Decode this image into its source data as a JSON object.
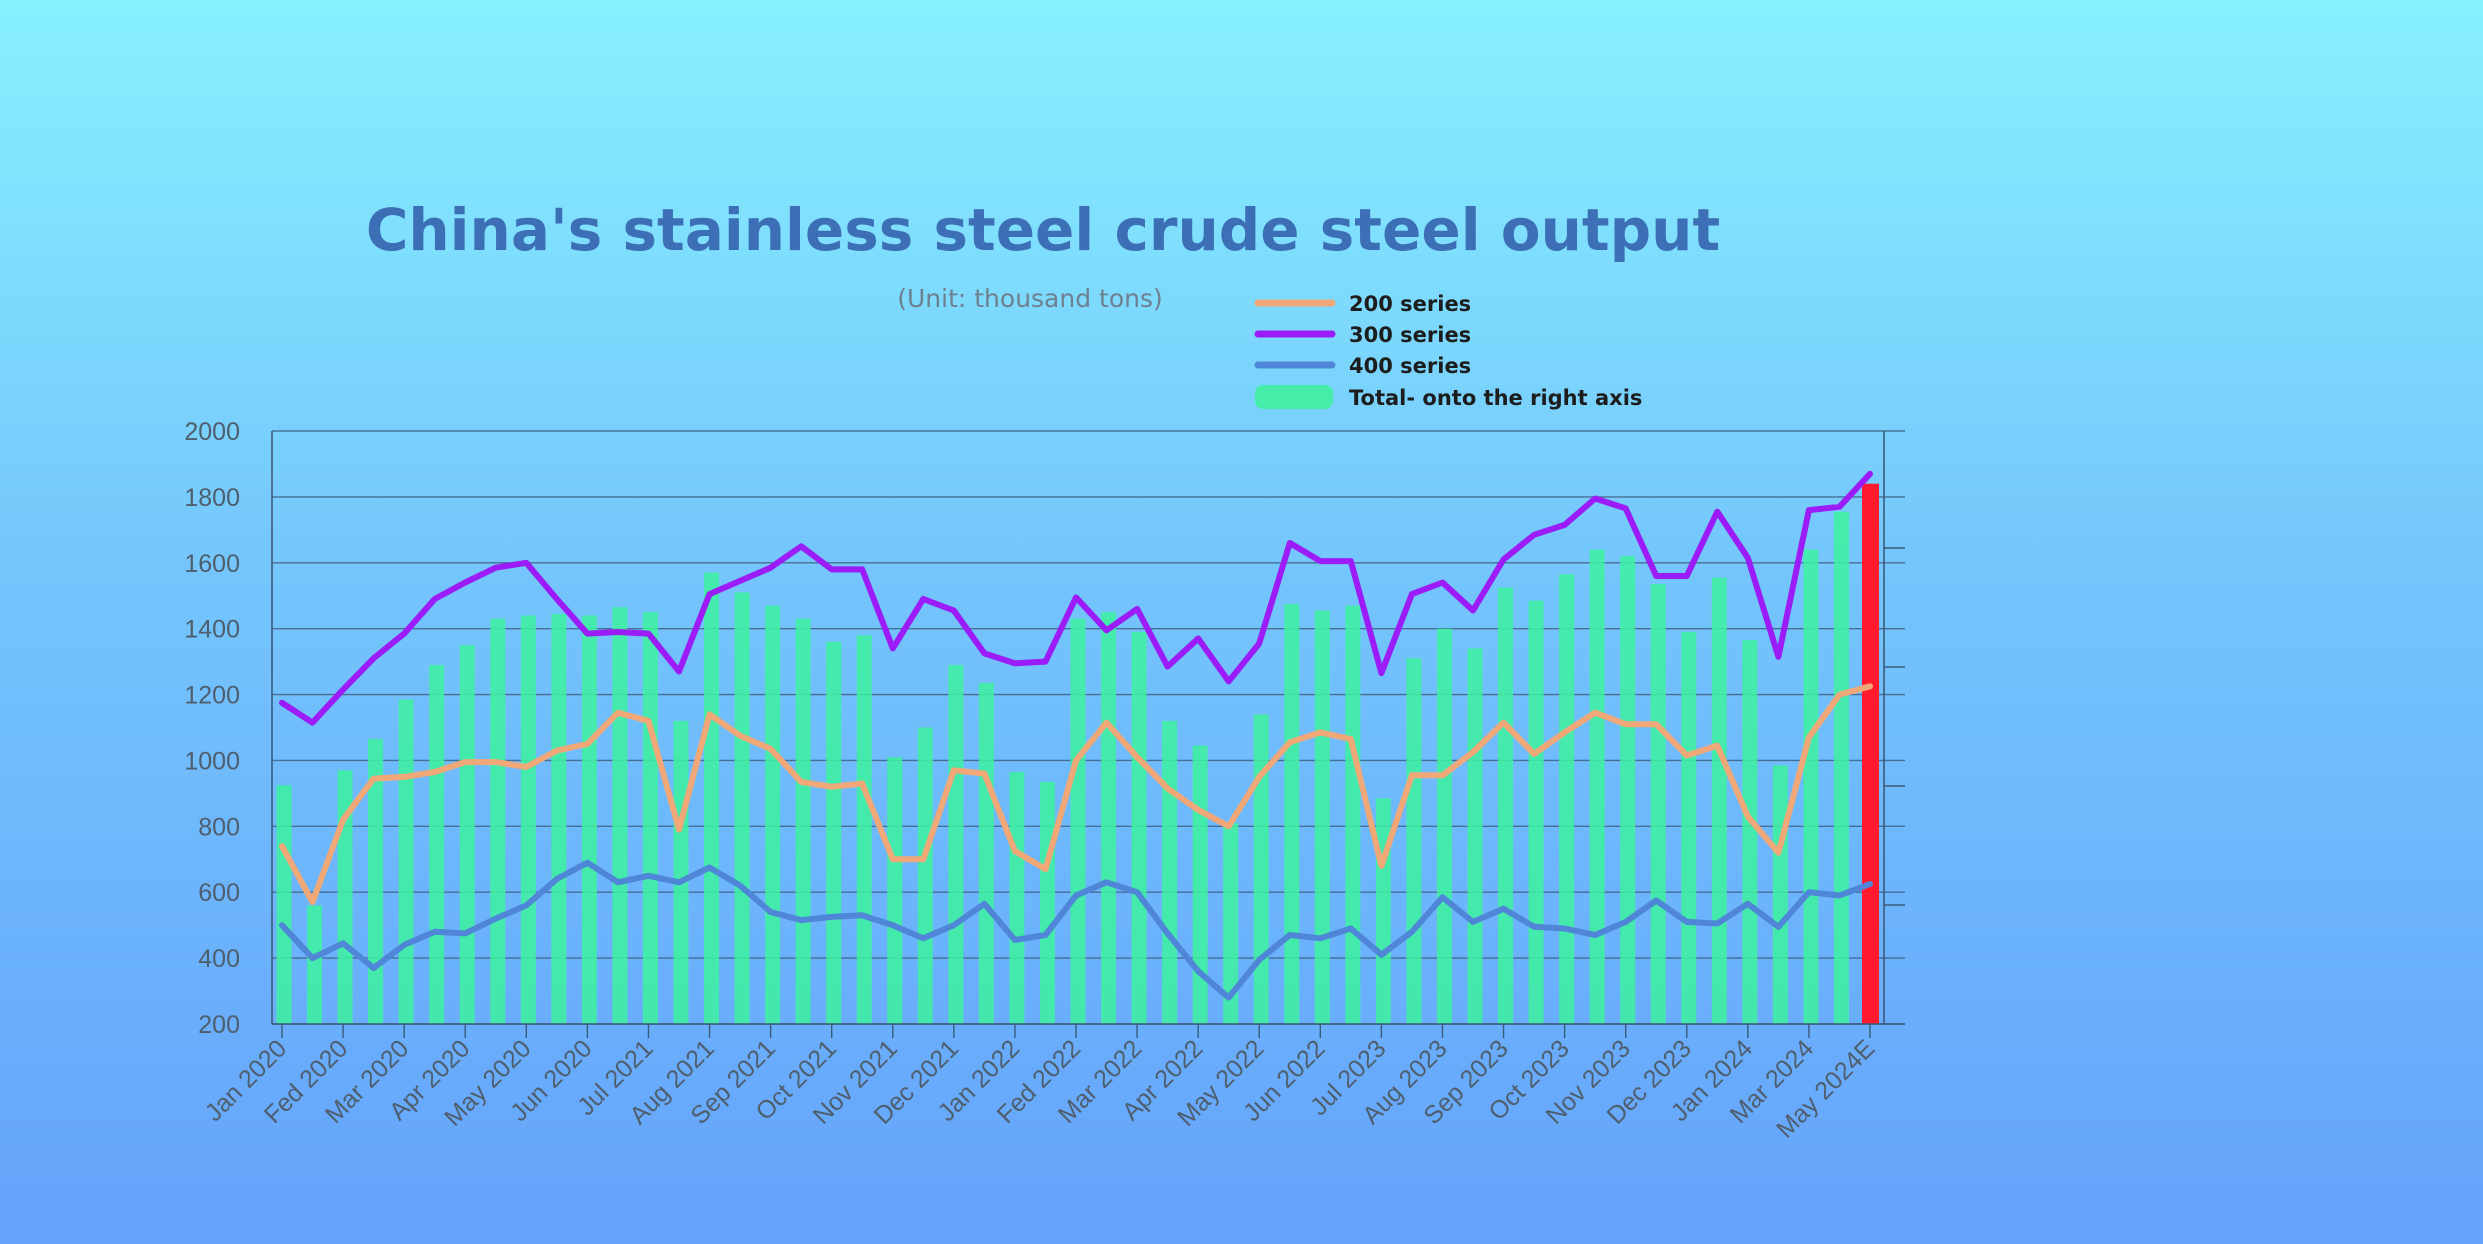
{
  "chart_data": {
    "type": "bar+line",
    "title": "China's stainless steel crude steel output",
    "subtitle": "(Unit: thousand tons)",
    "legend": [
      "200 series",
      "300 series",
      "400 series",
      "Total- onto the right axis"
    ],
    "colors": {
      "series_200": "#f0a878",
      "series_300": "#9b1cf6",
      "series_400": "#4f86d8",
      "total_bars": "#3ff0a0",
      "highlight": "#ff1a2e",
      "gridline": "#3c5a78"
    },
    "ylim": [
      200,
      2000
    ],
    "yticks": [
      2000,
      1800,
      1600,
      1400,
      1200,
      1000,
      800,
      600,
      400,
      200
    ],
    "xtick_labels": [
      "Jan 2020",
      "Fed 2020",
      "Mar 2020",
      "Apr 2020",
      "May 2020",
      "Jun 2020",
      "Jul 2021",
      "Aug 2021",
      "Sep 2021",
      "Oct 2021",
      "Nov 2021",
      "Dec 2021",
      "Jan 2022",
      "Fed 2022",
      "Mar 2022",
      "Apr 2022",
      "May 2022",
      "Jun 2022",
      "Jul 2023",
      "Aug 2023",
      "Sep 2023",
      "Oct 2023",
      "Nov 2023",
      "Dec 2023",
      "Jan 2024",
      "Mar 2024",
      "May 2024E"
    ],
    "series": [
      {
        "name": "200 series",
        "values": [
          740,
          570,
          820,
          945,
          950,
          965,
          995,
          995,
          980,
          1030,
          1050,
          1145,
          1120,
          790,
          1140,
          1075,
          1035,
          935,
          920,
          930,
          700,
          700,
          970,
          960,
          725,
          670,
          1000,
          1115,
          1010,
          915,
          850,
          800,
          950,
          1055,
          1085,
          1065,
          680,
          955,
          955,
          1025,
          1115,
          1020,
          1085,
          1145,
          1110,
          1110,
          1015,
          1045,
          830,
          720,
          1070,
          1200,
          1225
        ]
      },
      {
        "name": "300 series",
        "values": [
          1175,
          1115,
          1215,
          1310,
          1385,
          1490,
          1540,
          1585,
          1600,
          1490,
          1385,
          1390,
          1385,
          1270,
          1505,
          1545,
          1585,
          1650,
          1580,
          1580,
          1340,
          1490,
          1455,
          1325,
          1295,
          1300,
          1495,
          1395,
          1460,
          1285,
          1370,
          1240,
          1355,
          1660,
          1605,
          1605,
          1265,
          1505,
          1540,
          1455,
          1610,
          1685,
          1715,
          1795,
          1765,
          1560,
          1560,
          1755,
          1615,
          1315,
          1760,
          1770,
          1870
        ]
      },
      {
        "name": "400 series",
        "values": [
          500,
          400,
          445,
          370,
          440,
          480,
          475,
          520,
          560,
          640,
          690,
          630,
          650,
          630,
          675,
          620,
          540,
          515,
          525,
          530,
          500,
          460,
          500,
          565,
          455,
          470,
          590,
          630,
          600,
          475,
          360,
          280,
          395,
          470,
          460,
          490,
          410,
          480,
          585,
          510,
          550,
          495,
          490,
          470,
          510,
          575,
          510,
          505,
          565,
          495,
          600,
          590,
          625
        ]
      },
      {
        "name": "Total- onto the right axis",
        "values": [
          925,
          560,
          970,
          1065,
          1185,
          1290,
          1350,
          1430,
          1440,
          1445,
          1440,
          1465,
          1450,
          1120,
          1570,
          1510,
          1470,
          1430,
          1360,
          1380,
          1010,
          1100,
          1290,
          1235,
          965,
          935,
          1430,
          1450,
          1390,
          1120,
          1045,
          810,
          1140,
          1475,
          1455,
          1470,
          885,
          1310,
          1400,
          1340,
          1525,
          1485,
          1565,
          1640,
          1620,
          1535,
          1390,
          1555,
          1365,
          985,
          1640,
          1755,
          1840
        ]
      }
    ]
  }
}
